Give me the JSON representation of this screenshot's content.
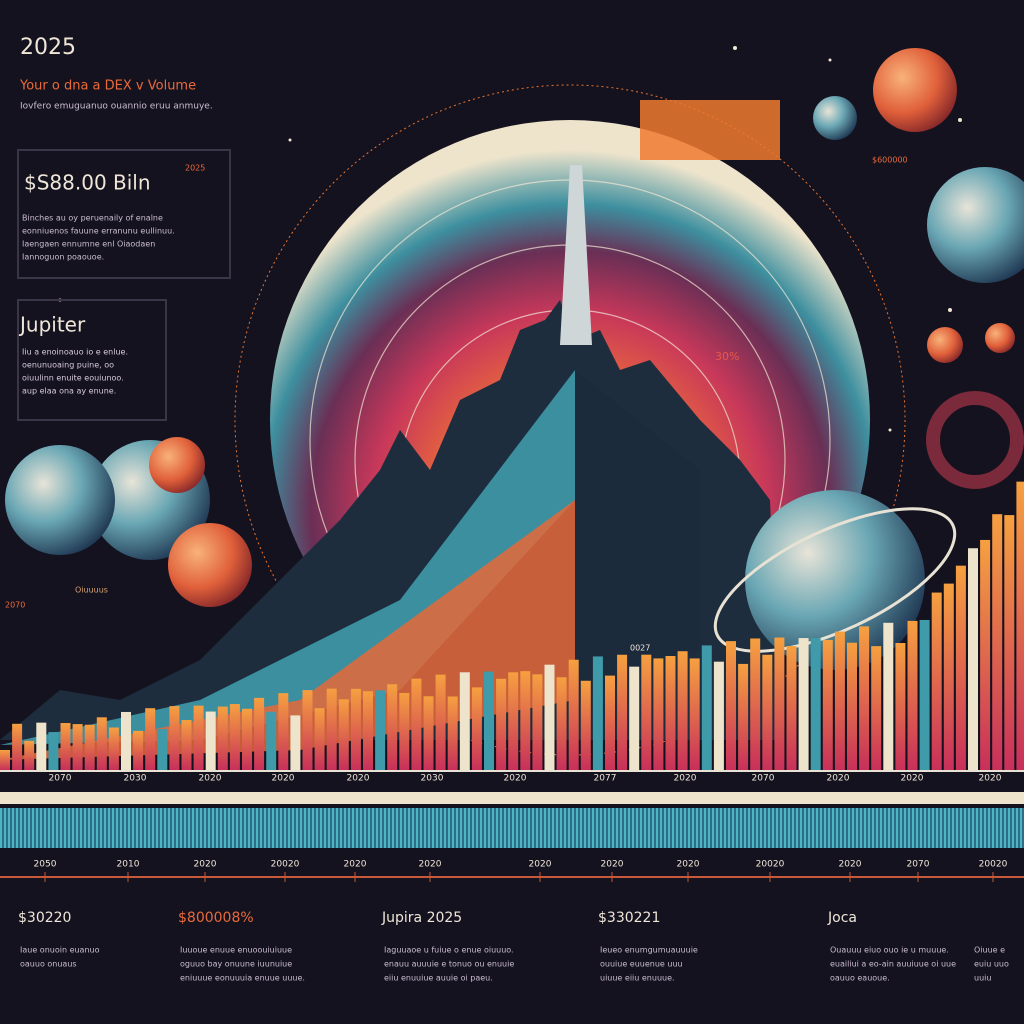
{
  "header": {
    "year": "2025",
    "title": "Your o dna a DEX v Volume",
    "subtitle": "Iovfero emuguanuo ouannio eruu anmuye."
  },
  "cards": [
    {
      "value": "$S88.00 Biln",
      "tag": "2025",
      "text": [
        "Binches au oy peruenaily of enalne",
        "eonniuenos fauune erranunu eullinuu.",
        "Iaengaen ennumne enl Oiaodaen",
        "Iannoguon poaouoe."
      ]
    },
    {
      "title": "Jupiter",
      "text": [
        "Iiu a enoinoauo io e enlue.",
        "oenunuoaing puine, oo",
        "oiuulinn enuite eouiunoo.",
        "aup elaa ona ay enune."
      ]
    }
  ],
  "annotations": {
    "percent": "30%",
    "left_label": "Oiuuuus",
    "left_year": "2070",
    "top_right": "$600000",
    "mid_label": "0027"
  },
  "axis_top": [
    "2070",
    "2030",
    "2020",
    "2020",
    "2020",
    "2030",
    "2020",
    "2077",
    "2020",
    "2070",
    "2020",
    "2020",
    "2020"
  ],
  "axis_bottom": [
    "2050",
    "2010",
    "2020",
    "20020",
    "2020",
    "2020",
    "2020",
    "2020",
    "2020",
    "20020",
    "2020",
    "2070",
    "20020"
  ],
  "footer": [
    {
      "title": "$30220",
      "text": [
        "Iaue onuoin euanuo",
        "oauuo onuaus"
      ]
    },
    {
      "title": "$800008%",
      "text": [
        "Iuuoue enuue enuoouiuiuue",
        "oguuo bay onuune iuunuiue",
        "eniuuue eonuuuia enuue uuue."
      ]
    },
    {
      "title": "Jupira 2025",
      "text": [
        "Iaguuaoe u fuiue o enue oiuuuo.",
        "enauu auuuie e tonuo ou enuuie",
        "eiiu enuuiue auuie oi paeu."
      ]
    },
    {
      "title": "$330221",
      "text": [
        "Ieueo enumgumuauuuie",
        "ouuiue euuenue uuu",
        "uiuue eiiu enuuue."
      ]
    },
    {
      "title": "Joca",
      "text": [
        "Ouauuu eiuo ouo ie u muuue.",
        "euailiui a eo-ain auuiuue oi uue",
        "oauuo eauoue."
      ]
    },
    {
      "title": "",
      "text": [
        "Oiuue e",
        "euiu uuo",
        "uuiu"
      ]
    }
  ]
}
